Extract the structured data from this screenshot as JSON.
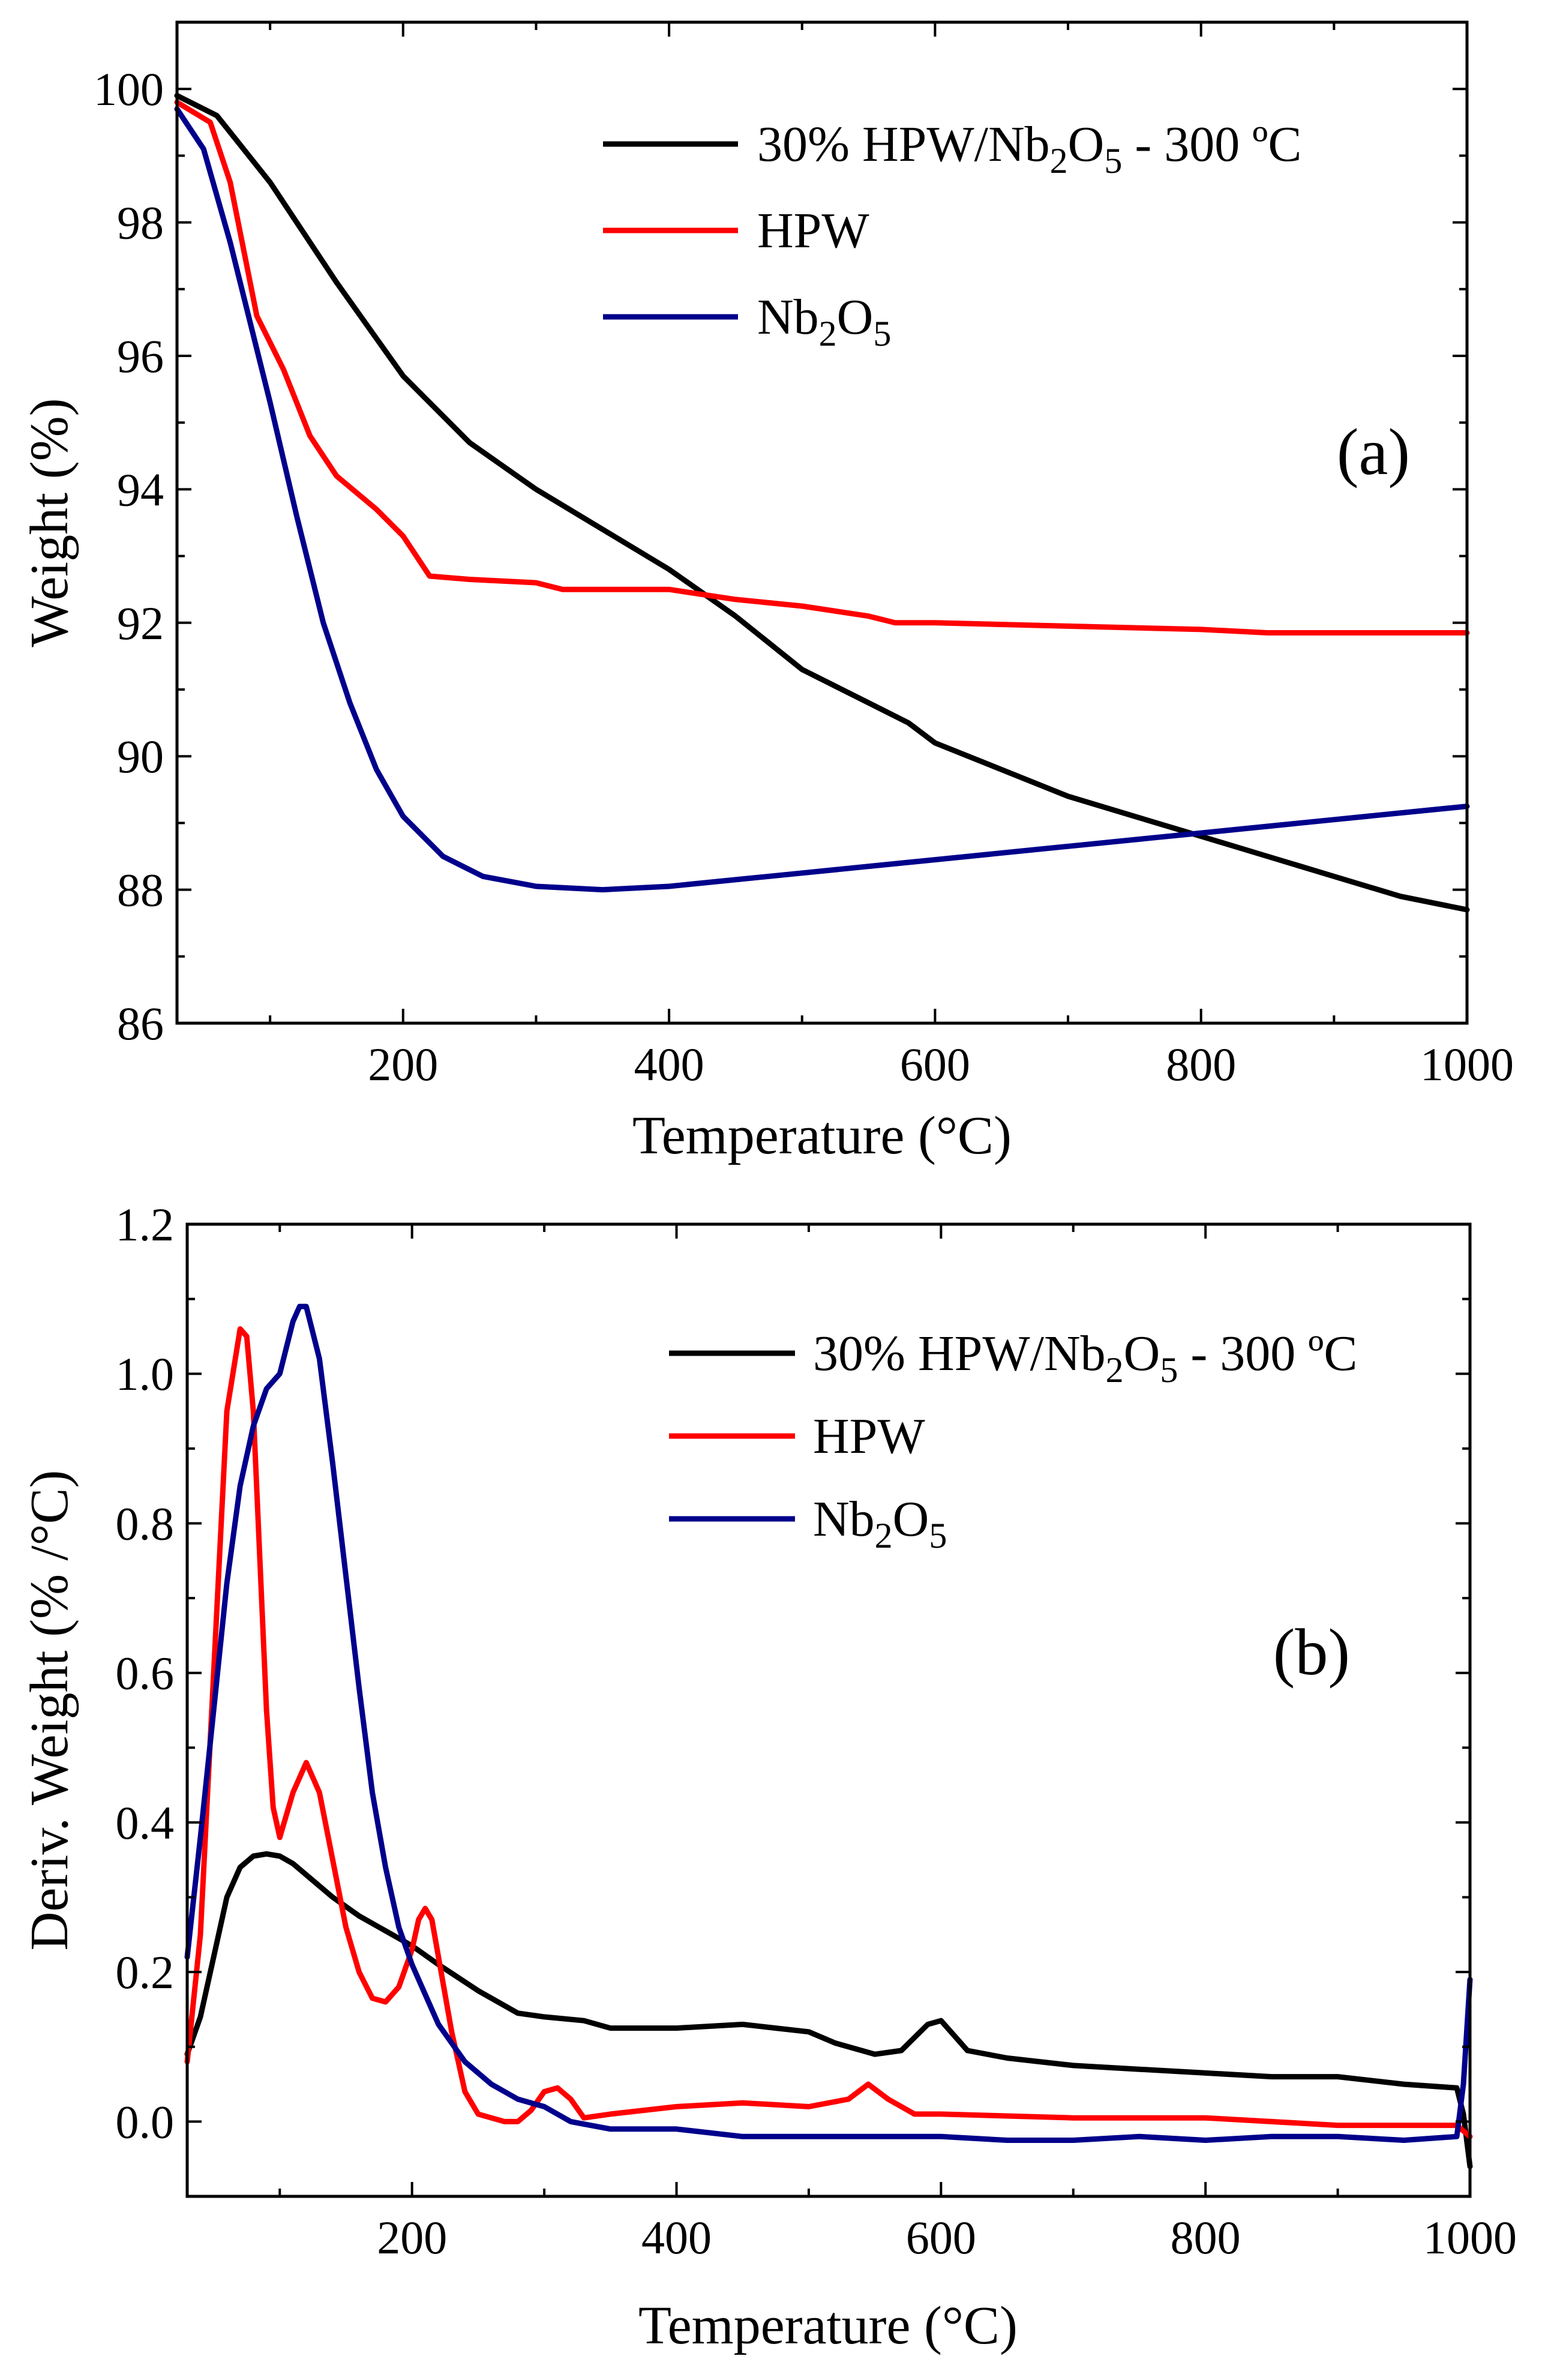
{
  "chart_data": [
    {
      "type": "line",
      "panel_label": "(a)",
      "xlabel": "Temperature (°C)",
      "ylabel": "Weight (%)",
      "xlim": [
        30,
        1000
      ],
      "ylim": [
        86,
        101
      ],
      "xticks": [
        200,
        400,
        600,
        800,
        1000
      ],
      "yticks": [
        86,
        88,
        90,
        92,
        94,
        96,
        98,
        100
      ],
      "legend_position": "top-right",
      "series": [
        {
          "name": "30% HPW/Nb2O5 - 300 ºC",
          "legend": {
            "pre": "30% HPW/Nb",
            "sub1": "2",
            "mid": "O",
            "sub2": "5",
            "post": " - 300 ºC"
          },
          "color": "#000000",
          "x": [
            30,
            60,
            100,
            150,
            200,
            250,
            300,
            350,
            400,
            450,
            500,
            550,
            580,
            600,
            650,
            700,
            750,
            800,
            850,
            900,
            950,
            1000
          ],
          "y": [
            99.9,
            99.6,
            98.6,
            97.1,
            95.7,
            94.7,
            94.0,
            93.4,
            92.8,
            92.1,
            91.3,
            90.8,
            90.5,
            90.2,
            89.8,
            89.4,
            89.1,
            88.8,
            88.5,
            88.2,
            87.9,
            87.7
          ]
        },
        {
          "name": "HPW",
          "legend": {
            "pre": "HPW",
            "sub1": "",
            "mid": "",
            "sub2": "",
            "post": ""
          },
          "color": "#ff0000",
          "x": [
            30,
            55,
            70,
            90,
            110,
            130,
            150,
            180,
            200,
            220,
            250,
            300,
            320,
            400,
            450,
            500,
            550,
            570,
            600,
            700,
            800,
            850,
            900,
            1000
          ],
          "y": [
            99.8,
            99.5,
            98.6,
            96.6,
            95.8,
            94.8,
            94.2,
            93.7,
            93.3,
            92.7,
            92.65,
            92.6,
            92.5,
            92.5,
            92.35,
            92.25,
            92.1,
            92.0,
            92.0,
            91.95,
            91.9,
            91.85,
            91.85,
            91.85
          ]
        },
        {
          "name": "Nb2O5",
          "legend": {
            "pre": "Nb",
            "sub1": "2",
            "mid": "O",
            "sub2": "5",
            "post": ""
          },
          "color": "#00008b",
          "x": [
            30,
            50,
            70,
            100,
            120,
            140,
            160,
            180,
            200,
            230,
            260,
            300,
            350,
            400,
            450,
            500,
            600,
            700,
            800,
            900,
            1000
          ],
          "y": [
            99.7,
            99.1,
            97.7,
            95.3,
            93.6,
            92.0,
            90.8,
            89.8,
            89.1,
            88.5,
            88.2,
            88.05,
            88.0,
            88.05,
            88.15,
            88.25,
            88.45,
            88.65,
            88.85,
            89.05,
            89.25
          ]
        }
      ]
    },
    {
      "type": "line",
      "panel_label": "(b)",
      "xlabel": "Temperature (°C)",
      "ylabel": "Deriv. Weight (% /°C)",
      "xlim": [
        30,
        1000
      ],
      "ylim": [
        -0.1,
        1.2
      ],
      "xticks": [
        200,
        400,
        600,
        800,
        1000
      ],
      "yticks": [
        0.0,
        0.2,
        0.4,
        0.6,
        0.8,
        1.0,
        1.2
      ],
      "legend_position": "top-right",
      "series": [
        {
          "name": "30% HPW/Nb2O5 - 300 ºC",
          "legend": {
            "pre": "30% HPW/Nb",
            "sub1": "2",
            "mid": "O",
            "sub2": "5",
            "post": " - 300 ºC"
          },
          "color": "#000000",
          "x": [
            30,
            40,
            50,
            60,
            70,
            80,
            90,
            100,
            110,
            120,
            140,
            160,
            180,
            200,
            220,
            250,
            280,
            300,
            330,
            350,
            400,
            450,
            500,
            520,
            550,
            570,
            590,
            600,
            620,
            650,
            700,
            750,
            800,
            850,
            900,
            950,
            990,
            995,
            1000
          ],
          "y": [
            0.09,
            0.14,
            0.22,
            0.3,
            0.34,
            0.355,
            0.358,
            0.355,
            0.345,
            0.33,
            0.3,
            0.275,
            0.255,
            0.235,
            0.21,
            0.175,
            0.145,
            0.14,
            0.135,
            0.125,
            0.125,
            0.13,
            0.12,
            0.105,
            0.09,
            0.095,
            0.13,
            0.135,
            0.095,
            0.085,
            0.075,
            0.07,
            0.065,
            0.06,
            0.06,
            0.05,
            0.045,
            0.01,
            -0.06
          ]
        },
        {
          "name": "HPW",
          "legend": {
            "pre": "HPW",
            "sub1": "",
            "mid": "",
            "sub2": "",
            "post": ""
          },
          "color": "#ff0000",
          "x": [
            30,
            40,
            50,
            60,
            70,
            75,
            80,
            85,
            90,
            95,
            100,
            110,
            120,
            130,
            140,
            150,
            160,
            170,
            180,
            190,
            200,
            205,
            210,
            215,
            220,
            230,
            240,
            250,
            260,
            270,
            280,
            290,
            300,
            310,
            320,
            330,
            350,
            400,
            450,
            500,
            530,
            545,
            560,
            580,
            600,
            700,
            800,
            900,
            990,
            1000
          ],
          "y": [
            0.08,
            0.25,
            0.6,
            0.95,
            1.06,
            1.05,
            0.95,
            0.75,
            0.55,
            0.42,
            0.38,
            0.44,
            0.48,
            0.44,
            0.35,
            0.26,
            0.2,
            0.165,
            0.16,
            0.18,
            0.23,
            0.27,
            0.285,
            0.27,
            0.22,
            0.12,
            0.04,
            0.01,
            0.005,
            0.0,
            0.0,
            0.015,
            0.04,
            0.045,
            0.03,
            0.005,
            0.01,
            0.02,
            0.025,
            0.02,
            0.03,
            0.05,
            0.03,
            0.01,
            0.01,
            0.005,
            0.005,
            -0.005,
            -0.005,
            -0.02
          ]
        },
        {
          "name": "Nb2O5",
          "legend": {
            "pre": "Nb",
            "sub1": "2",
            "mid": "O",
            "sub2": "5",
            "post": ""
          },
          "color": "#00008b",
          "x": [
            30,
            40,
            50,
            60,
            70,
            80,
            90,
            100,
            110,
            115,
            120,
            130,
            140,
            150,
            160,
            170,
            180,
            190,
            200,
            210,
            220,
            240,
            260,
            280,
            300,
            320,
            350,
            400,
            450,
            500,
            550,
            600,
            650,
            700,
            750,
            800,
            850,
            900,
            950,
            990,
            995,
            1000
          ],
          "y": [
            0.22,
            0.38,
            0.55,
            0.72,
            0.85,
            0.93,
            0.98,
            1.0,
            1.07,
            1.09,
            1.09,
            1.02,
            0.88,
            0.73,
            0.58,
            0.44,
            0.34,
            0.26,
            0.21,
            0.17,
            0.13,
            0.08,
            0.05,
            0.03,
            0.02,
            0.0,
            -0.01,
            -0.01,
            -0.02,
            -0.02,
            -0.02,
            -0.02,
            -0.025,
            -0.025,
            -0.02,
            -0.025,
            -0.02,
            -0.02,
            -0.025,
            -0.02,
            0.05,
            0.19
          ]
        }
      ]
    }
  ]
}
